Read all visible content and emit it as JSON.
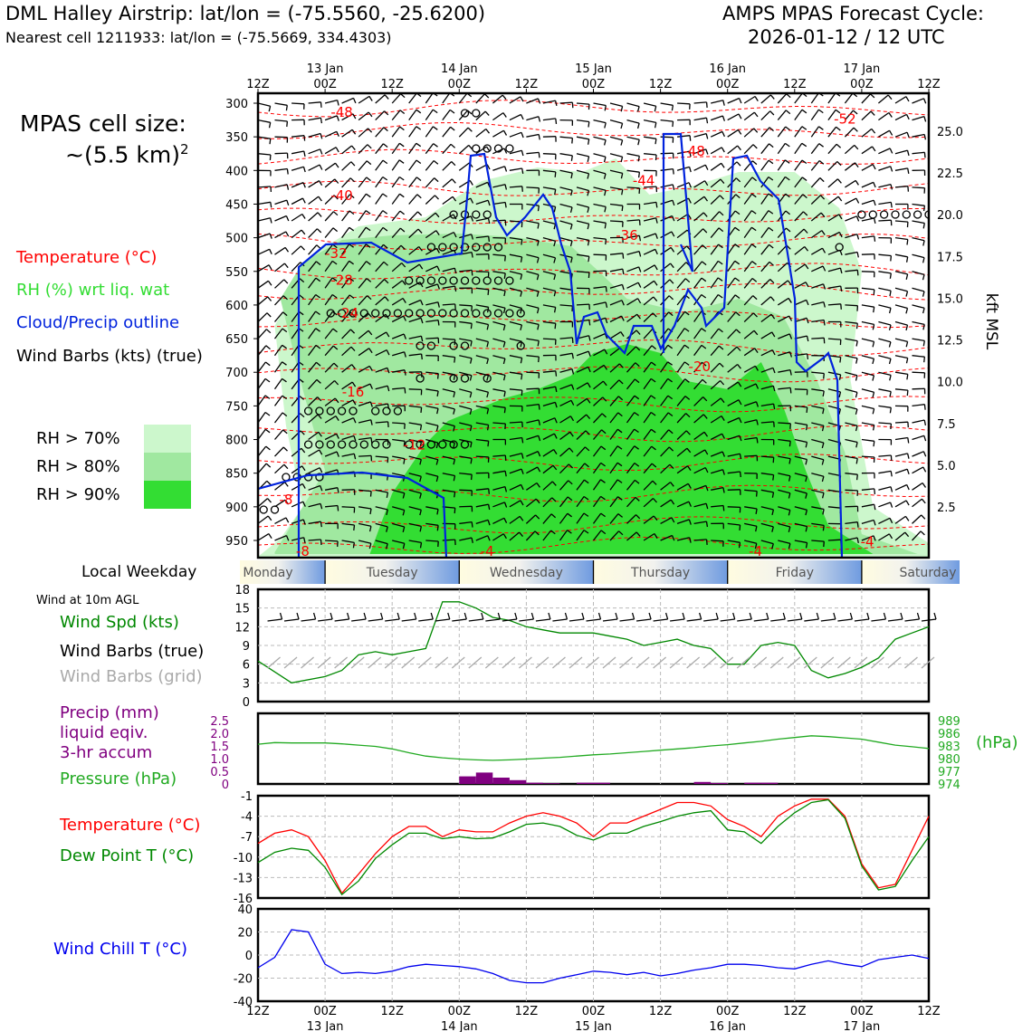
{
  "header": {
    "title": "DML Halley Airstrip: lat/lon = (-75.5560, -25.6200)",
    "subtitle": "Nearest cell 1211933: lat/lon = (-75.5669, 334.4303)",
    "cycle_line1": "AMPS MPAS Forecast Cycle:",
    "cycle_line2": "2026-01-12 / 12 UTC"
  },
  "left_panel": {
    "cell_size_line1": "MPAS cell size:",
    "cell_size_line2": "~(5.5 km)",
    "cell_size_exp": "2",
    "legend_temperature": "Temperature (°C)",
    "legend_rh": "RH (%) wrt liq. wat",
    "legend_cloud": "Cloud/Precip outline",
    "legend_wind": "Wind Barbs (kts) (true)",
    "rh_keys": [
      "RH > 70%",
      "RH > 80%",
      "RH > 90%"
    ],
    "local_weekday_label": "Local Weekday",
    "wind10m_label": "Wind at 10m AGL",
    "wind_spd_label": "Wind Spd (kts)",
    "wind_barbs_true_label": "Wind Barbs (true)",
    "wind_barbs_grid_label": "Wind Barbs (grid)",
    "precip_label1": "Precip (mm)",
    "precip_label2": "liquid eqiv.",
    "precip_label3": "3-hr accum",
    "pressure_label": "Pressure (hPa)",
    "pressure_unit": "(hPa)",
    "temp_label": "Temperature (°C)",
    "dew_label": "Dew Point T (°C)",
    "windchill_label": "Wind Chill T (°C)"
  },
  "colors": {
    "temperature": "#ff0000",
    "rh_green_text": "#33dd33",
    "cloud": "#0022dd",
    "rh70": "#ccf7cc",
    "rh80": "#a0e8a0",
    "rh90": "#33dd33",
    "windspd": "#008800",
    "grid_barbs": "#aaaaaa",
    "precip": "#800080",
    "pressure": "#22aa22",
    "dewpoint": "#008800",
    "windchill": "#0000ee"
  },
  "chart_data": [
    {
      "type": "heatmap",
      "name": "vertical cross-section",
      "x_ticks_top": [
        "12Z",
        "00Z",
        "12Z",
        "00Z",
        "12Z",
        "00Z",
        "12Z",
        "00Z",
        "12Z",
        "00Z",
        "12Z"
      ],
      "date_labels": [
        "13 Jan",
        "14 Jan",
        "15 Jan",
        "16 Jan",
        "17 Jan"
      ],
      "pressure_levels": [
        300,
        350,
        400,
        450,
        500,
        550,
        600,
        650,
        700,
        750,
        800,
        850,
        900,
        950
      ],
      "kft_ticks": [
        "25.0",
        "22.5",
        "20.0",
        "17.5",
        "15.0",
        "12.5",
        "10.0",
        "7.5",
        "5.0",
        "2.5"
      ],
      "kft_values": [
        25.0,
        22.5,
        20.0,
        17.5,
        15.0,
        12.5,
        10.0,
        7.5,
        5.0,
        2.5
      ],
      "kft_axis_label": "kft MSL",
      "temperature_labels": [
        {
          "text": "-48",
          "hour": 15,
          "p": 312
        },
        {
          "text": "-52",
          "hour": 105,
          "p": 322
        },
        {
          "text": "-48",
          "hour": 78,
          "p": 370
        },
        {
          "text": "-44",
          "hour": 69,
          "p": 414
        },
        {
          "text": "-40",
          "hour": 15,
          "p": 436
        },
        {
          "text": "-36",
          "hour": 66,
          "p": 495
        },
        {
          "text": "-32",
          "hour": 14,
          "p": 522
        },
        {
          "text": "-28",
          "hour": 15,
          "p": 562
        },
        {
          "text": "-24",
          "hour": 16,
          "p": 611
        },
        {
          "text": "-20",
          "hour": 79,
          "p": 690
        },
        {
          "text": "-16",
          "hour": 17,
          "p": 728
        },
        {
          "text": "-12",
          "hour": 28,
          "p": 807
        },
        {
          "text": "-8",
          "hour": 5,
          "p": 888
        },
        {
          "text": "-8",
          "hour": 8,
          "p": 965
        },
        {
          "text": "-4",
          "hour": 41,
          "p": 965
        },
        {
          "text": "-4",
          "hour": 89,
          "p": 965
        },
        {
          "text": "-4",
          "hour": 109,
          "p": 951
        }
      ],
      "weekdays": [
        "Monday",
        "Tuesday",
        "Wednesday",
        "Thursday",
        "Friday",
        "Saturday"
      ]
    },
    {
      "type": "line",
      "name": "wind speed 10m",
      "hours": [
        0,
        6,
        12,
        15,
        18,
        21,
        24,
        27,
        30,
        33,
        36,
        39,
        42,
        45,
        48,
        51,
        54,
        57,
        60,
        63,
        66,
        69,
        72,
        75,
        78,
        81,
        84,
        87,
        90,
        93,
        96,
        99,
        102,
        105,
        108,
        111,
        114,
        117,
        120
      ],
      "values": [
        6.5,
        3,
        4,
        5,
        7.5,
        8,
        7.5,
        8,
        8.5,
        16,
        16,
        15,
        13.5,
        13,
        12,
        11.5,
        11,
        11,
        11,
        10.5,
        10,
        9,
        9.5,
        10,
        9,
        8.5,
        6,
        6,
        9,
        9.5,
        9,
        5,
        3.8,
        4.5,
        5.5,
        7,
        10,
        11,
        12
      ],
      "ylim": [
        0,
        18
      ],
      "yticks": [
        "0",
        "3",
        "6",
        "9",
        "12",
        "15",
        "18"
      ]
    },
    {
      "type": "bar",
      "name": "precip and pressure",
      "precip_hours": [
        36,
        39,
        42,
        45,
        48,
        51,
        57,
        60,
        78,
        81,
        87,
        90
      ],
      "precip_mm": [
        0.3,
        0.45,
        0.25,
        0.15,
        0.05,
        0.03,
        0.05,
        0.05,
        0.08,
        0.04,
        0.05,
        0.05
      ],
      "precip_ylim": [
        0,
        2.5
      ],
      "precip_yticks": [
        "0",
        "0.5",
        "1.0",
        "1.5",
        "2.0",
        "2.5"
      ],
      "pressure_hours": [
        0,
        3,
        6,
        9,
        12,
        15,
        18,
        21,
        24,
        27,
        30,
        33,
        36,
        39,
        42,
        45,
        48,
        51,
        54,
        57,
        60,
        63,
        66,
        69,
        72,
        75,
        78,
        81,
        84,
        87,
        90,
        93,
        96,
        99,
        102,
        105,
        108,
        111,
        114,
        117,
        120
      ],
      "pressure_hpa": [
        983.4,
        983.8,
        983.7,
        983.7,
        983.7,
        983.5,
        983.2,
        982.9,
        982.3,
        981.4,
        980.6,
        980.2,
        979.9,
        979.7,
        979.6,
        979.7,
        979.9,
        980.1,
        980.3,
        980.6,
        980.9,
        981.1,
        981.4,
        981.7,
        982.0,
        982.3,
        982.6,
        983.0,
        983.3,
        983.7,
        984.1,
        984.6,
        985.0,
        985.4,
        985.2,
        984.9,
        984.6,
        983.9,
        983.2,
        982.8,
        982.4
      ],
      "pressure_ylim": [
        974,
        989
      ],
      "pressure_yticks": [
        "974",
        "977",
        "980",
        "983",
        "986",
        "989"
      ]
    },
    {
      "type": "line",
      "name": "temperature and dew point",
      "hours": [
        0,
        3,
        6,
        9,
        12,
        15,
        18,
        21,
        24,
        27,
        30,
        33,
        36,
        39,
        42,
        45,
        48,
        51,
        54,
        57,
        60,
        63,
        66,
        69,
        72,
        75,
        78,
        81,
        84,
        87,
        90,
        93,
        96,
        99,
        102,
        105,
        108,
        111,
        114,
        117,
        120
      ],
      "temperature": [
        -8,
        -6.5,
        -6,
        -7,
        -10.5,
        -15.3,
        -12.5,
        -9.5,
        -7,
        -5.5,
        -5.5,
        -7,
        -6,
        -6.3,
        -6.3,
        -5,
        -4,
        -3.5,
        -4,
        -5,
        -7,
        -5,
        -5,
        -4,
        -3,
        -2,
        -2,
        -2.5,
        -4.5,
        -5.5,
        -7,
        -4,
        -2.5,
        -1.5,
        -1.5,
        -4,
        -11,
        -14.5,
        -14,
        -9,
        -4
      ],
      "dewpoint": [
        -10.8,
        -9.3,
        -8.7,
        -9,
        -11.5,
        -15.5,
        -13.5,
        -10.2,
        -8.2,
        -6.5,
        -6.5,
        -7.3,
        -7,
        -7.3,
        -7.2,
        -6.3,
        -5.2,
        -5,
        -5.5,
        -6.8,
        -7.5,
        -6.5,
        -6.5,
        -5.5,
        -4.8,
        -4,
        -3.5,
        -3.2,
        -6,
        -6.3,
        -8,
        -5.5,
        -3.5,
        -2,
        -1.6,
        -4.3,
        -11.3,
        -14.8,
        -14.3,
        -10.5,
        -7
      ],
      "ylim": [
        -16,
        -1
      ],
      "yticks": [
        "-16",
        "-13",
        "-10",
        "-7",
        "-4",
        "-1"
      ]
    },
    {
      "type": "line",
      "name": "wind chill",
      "hours": [
        0,
        3,
        6,
        9,
        12,
        15,
        18,
        21,
        24,
        27,
        30,
        33,
        36,
        39,
        42,
        45,
        48,
        51,
        54,
        57,
        60,
        63,
        66,
        69,
        72,
        75,
        78,
        81,
        84,
        87,
        90,
        93,
        96,
        99,
        102,
        105,
        108,
        111,
        114,
        117,
        120
      ],
      "values": [
        -11,
        -2,
        22,
        20,
        -8,
        -16,
        -15,
        -16,
        -14,
        -10,
        -8,
        -9,
        -10,
        -12,
        -16,
        -22,
        -24,
        -24,
        -20,
        -17,
        -14,
        -15,
        -17,
        -15,
        -18,
        -16,
        -13,
        -11,
        -8,
        -8,
        -9,
        -11,
        -12,
        -8,
        -5,
        -8,
        -10,
        -4,
        -2,
        0,
        -3
      ],
      "ylim": [
        -40,
        40
      ],
      "yticks": [
        "-40",
        "-20",
        "0",
        "20",
        "40"
      ]
    }
  ],
  "x_axis_bottom": {
    "ticks": [
      "12Z",
      "00Z",
      "12Z",
      "00Z",
      "12Z",
      "00Z",
      "12Z",
      "00Z",
      "12Z",
      "00Z",
      "12Z"
    ],
    "dates": [
      "13 Jan",
      "14 Jan",
      "15 Jan",
      "16 Jan",
      "17 Jan"
    ]
  }
}
